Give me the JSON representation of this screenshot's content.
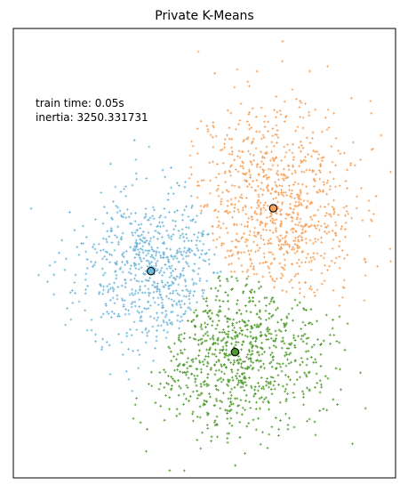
{
  "chart_data": {
    "type": "scatter",
    "title": "Private K-Means",
    "xlabel": "",
    "ylabel": "",
    "xlim": [
      0,
      100
    ],
    "ylim": [
      0,
      100
    ],
    "grid": false,
    "annotations": {
      "train_time": "train time: 0.05s",
      "inertia": "inertia: 3250.331731"
    },
    "clusters": [
      {
        "color": "#f5a25d",
        "centroid": [
          68,
          60
        ],
        "spread": [
          11,
          12
        ],
        "count": 900,
        "seed": 11
      },
      {
        "color": "#6fb7d9",
        "centroid": [
          36,
          46
        ],
        "spread": [
          10,
          9
        ],
        "count": 700,
        "seed": 23
      },
      {
        "color": "#4f9a2c",
        "centroid": [
          58,
          28
        ],
        "spread": [
          12,
          9
        ],
        "count": 850,
        "seed": 37
      }
    ]
  }
}
